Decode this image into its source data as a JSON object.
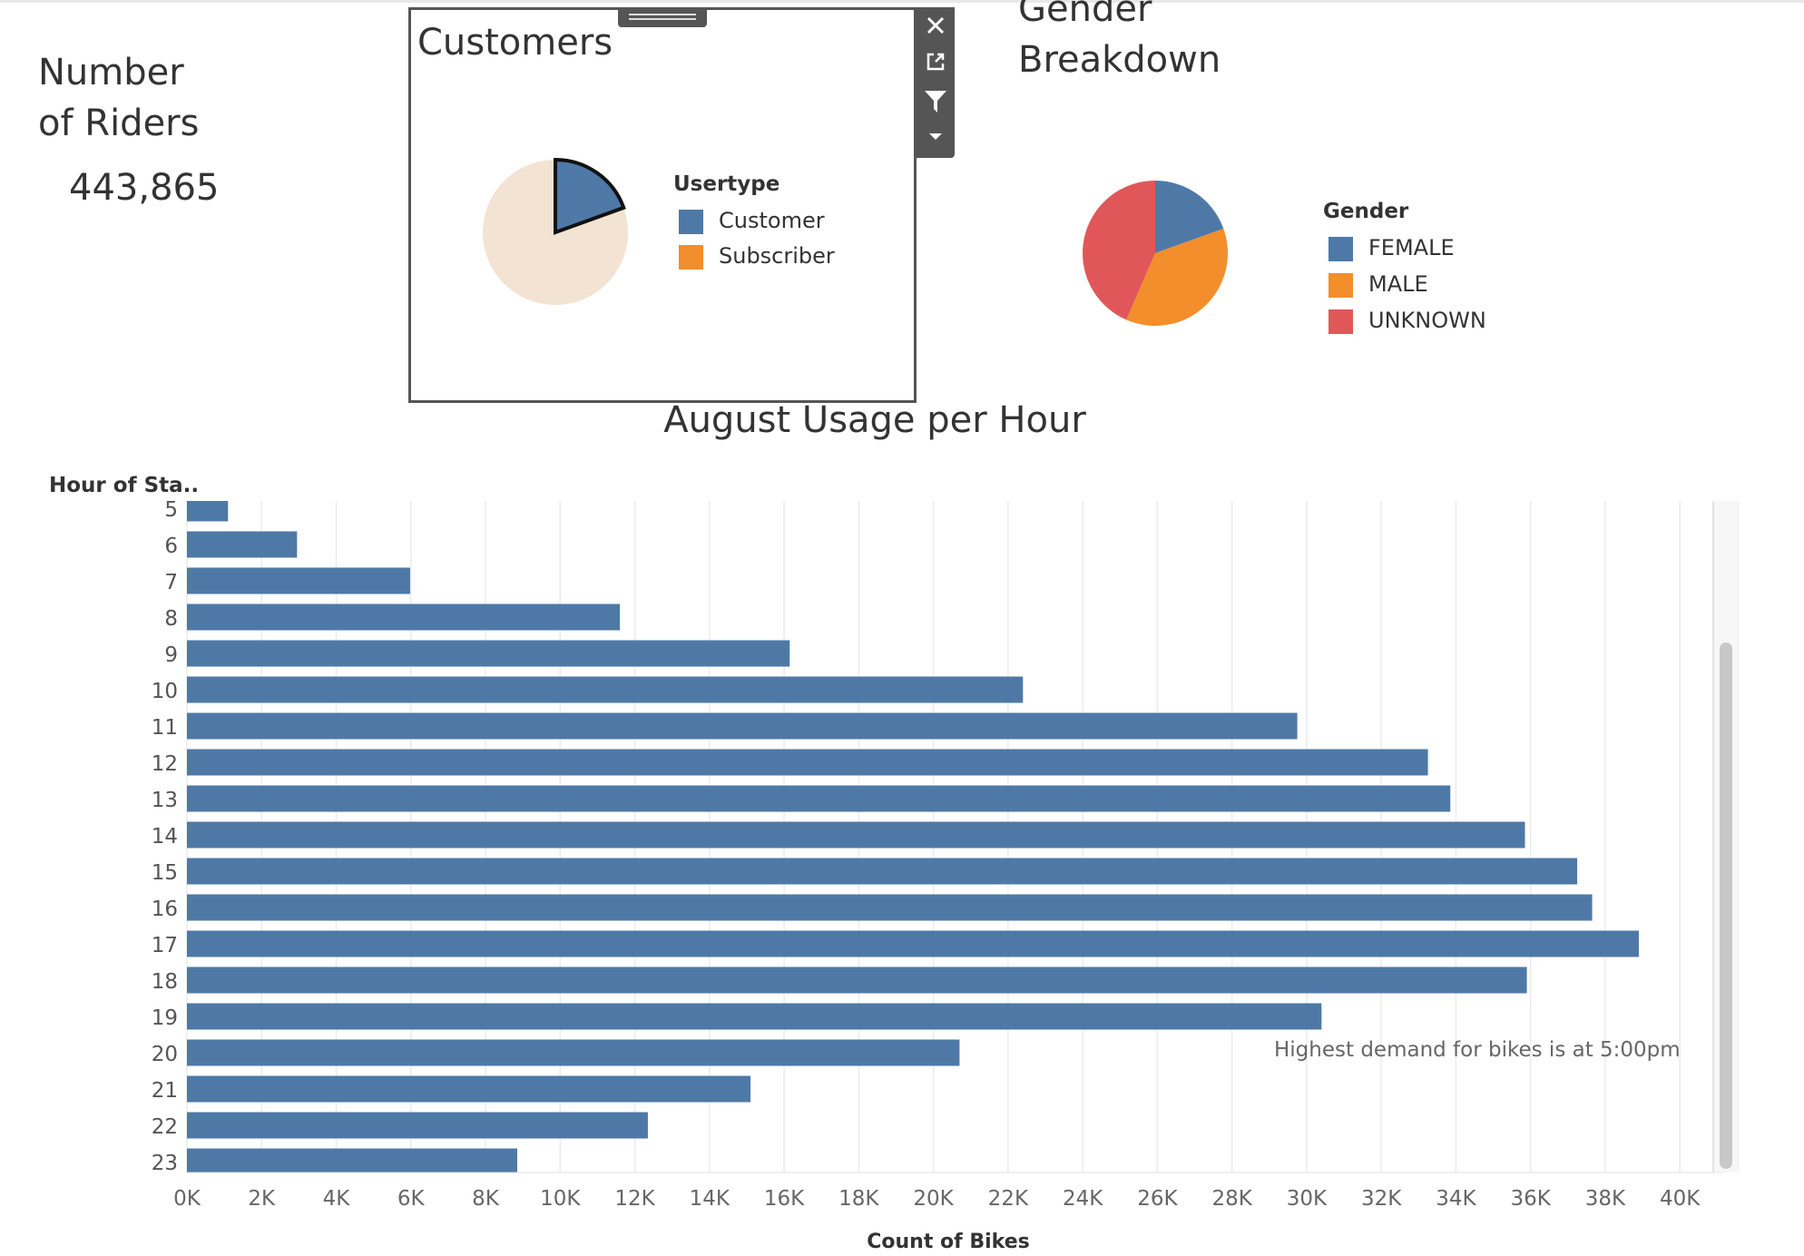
{
  "riders": {
    "title": "Number\nof Riders",
    "value": "443,865"
  },
  "customers_panel": {
    "title": "Customers",
    "legend_title": "Usertype",
    "legend": [
      {
        "label": "Customer",
        "color": "#4e79a7"
      },
      {
        "label": "Subscriber",
        "color": "#f28e2b"
      }
    ],
    "toolbar_icons": [
      "close-icon",
      "popout-icon",
      "filter-icon",
      "menu-caret-icon"
    ]
  },
  "gender_panel": {
    "title": "Gender\nBreakdown",
    "legend_title": "Gender",
    "legend": [
      {
        "label": "FEMALE",
        "color": "#4e79a7"
      },
      {
        "label": "MALE",
        "color": "#f28e2b"
      },
      {
        "label": "UNKNOWN",
        "color": "#e15759"
      }
    ]
  },
  "hour_chart": {
    "title": "August Usage per Hour",
    "y_axis_title": "Hour of Sta..",
    "x_axis_title": "Count of Bikes",
    "note": "Highest demand for bikes is at 5:00pm"
  },
  "chart_data": [
    {
      "type": "pie",
      "title": "Customers",
      "legend_title": "Usertype",
      "slices": [
        {
          "label": "Customer",
          "value": 19.5,
          "color": "#4e79a7",
          "highlighted": true
        },
        {
          "label": "Subscriber",
          "value": 80.5,
          "color": "#f28e2b",
          "highlighted": false
        }
      ],
      "dimmed_color": "#f3e3d3"
    },
    {
      "type": "pie",
      "title": "Gender\nBreakdown",
      "legend_title": "Gender",
      "slices": [
        {
          "label": "FEMALE",
          "value": 19.5,
          "color": "#4e79a7"
        },
        {
          "label": "MALE",
          "value": 37,
          "color": "#f28e2b"
        },
        {
          "label": "UNKNOWN",
          "value": 43.5,
          "color": "#e15759"
        }
      ]
    },
    {
      "type": "bar",
      "orientation": "horizontal",
      "title": "August Usage per Hour",
      "ylabel": "Hour of Sta..",
      "xlabel": "Count of Bikes",
      "categories": [
        "5",
        "6",
        "7",
        "8",
        "9",
        "10",
        "11",
        "12",
        "13",
        "14",
        "15",
        "16",
        "17",
        "18",
        "19",
        "20",
        "21",
        "22",
        "23"
      ],
      "values": [
        1100,
        2950,
        5980,
        11600,
        16150,
        22400,
        29750,
        33250,
        33850,
        35850,
        37250,
        37650,
        38900,
        35900,
        30400,
        20700,
        15100,
        12350,
        8850
      ],
      "xlim": [
        0,
        41000
      ],
      "xticks": [
        "0K",
        "2K",
        "4K",
        "6K",
        "8K",
        "10K",
        "12K",
        "14K",
        "16K",
        "18K",
        "20K",
        "22K",
        "24K",
        "26K",
        "28K",
        "30K",
        "32K",
        "34K",
        "36K",
        "38K",
        "40K"
      ],
      "color": "#4e79a7",
      "grid": "vertical"
    }
  ]
}
